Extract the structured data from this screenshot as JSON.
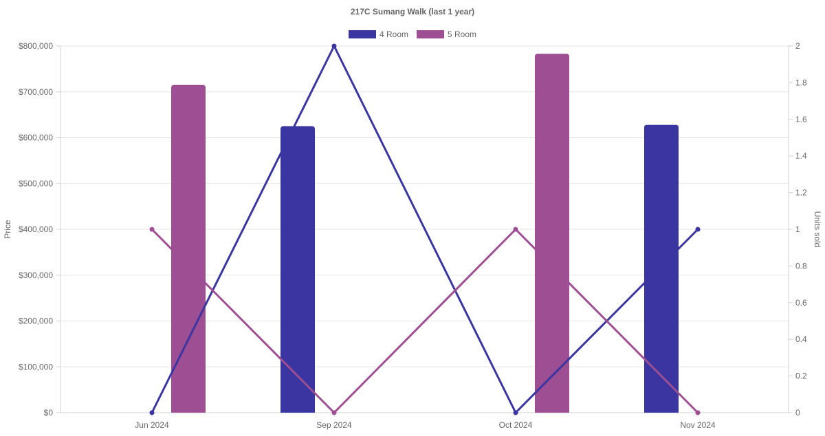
{
  "chart_data": {
    "type": "bar",
    "title": "217C Sumang Walk (last 1 year)",
    "categories": [
      "Jun 2024",
      "Sep 2024",
      "Oct 2024",
      "Nov 2024"
    ],
    "legend": [
      {
        "name": "4 Room",
        "color": "#3a35a0"
      },
      {
        "name": "5 Room",
        "color": "#9e4f93"
      }
    ],
    "series": [
      {
        "name": "4 Room",
        "kind": "bar",
        "axis": "price",
        "color": "#3a35a0",
        "values": [
          null,
          625000,
          null,
          628000
        ]
      },
      {
        "name": "5 Room",
        "kind": "bar",
        "axis": "price",
        "color": "#9e4f93",
        "values": [
          715000,
          null,
          783000,
          null
        ]
      },
      {
        "name": "4 Room",
        "kind": "line",
        "axis": "units",
        "color": "#3a35a0",
        "values": [
          0,
          2,
          0,
          1
        ]
      },
      {
        "name": "5 Room",
        "kind": "line",
        "axis": "units",
        "color": "#9e4f93",
        "values": [
          1,
          0,
          1,
          0
        ]
      }
    ],
    "y_left": {
      "label": "Price",
      "range": [
        0,
        800000
      ],
      "ticks": [
        "$0",
        "$100,000",
        "$200,000",
        "$300,000",
        "$400,000",
        "$500,000",
        "$600,000",
        "$700,000",
        "$800,000"
      ]
    },
    "y_right": {
      "label": "Units sold",
      "range": [
        0,
        2
      ],
      "ticks": [
        "0",
        "0.2",
        "0.4",
        "0.6",
        "0.8",
        "1",
        "1.2",
        "1.4",
        "1.6",
        "1.8",
        "2"
      ]
    },
    "grid": true,
    "legend_position": "top"
  }
}
